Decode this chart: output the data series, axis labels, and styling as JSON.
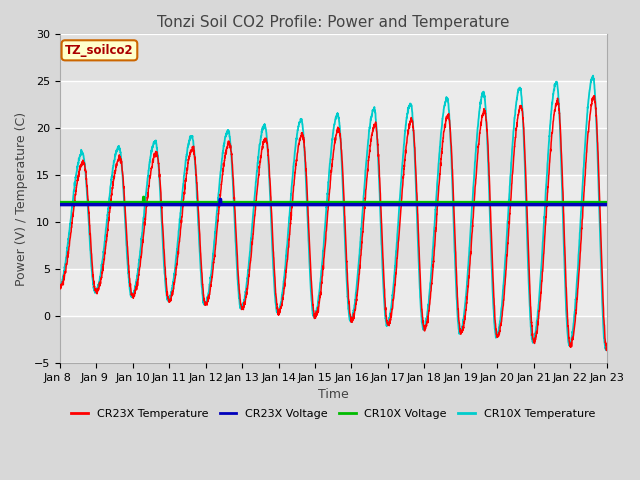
{
  "title": "Tonzi Soil CO2 Profile: Power and Temperature",
  "xlabel": "Time",
  "ylabel": "Power (V) / Temperature (C)",
  "ylim": [
    -5,
    30
  ],
  "xtick_labels": [
    "Jan 8 ",
    "Jan 9 ",
    "Jan 10",
    "Jan 11",
    "Jan 12",
    "Jan 13",
    "Jan 14",
    "Jan 15",
    "Jan 16",
    "Jan 17",
    "Jan 18",
    "Jan 19",
    "Jan 20",
    "Jan 21",
    "Jan 22",
    "Jan 23"
  ],
  "cr23x_voltage_value": 11.85,
  "cr10x_voltage_value": 12.1,
  "plot_bg_color": "#ebebeb",
  "fig_bg_color": "#d8d8d8",
  "annotation_text": "TZ_soilco2",
  "annotation_color": "#aa0000",
  "annotation_bg": "#ffffcc",
  "annotation_border": "#cc6600",
  "cr23x_temp_color": "#ff0000",
  "cr23x_volt_color": "#0000bb",
  "cr10x_volt_color": "#00bb00",
  "cr10x_temp_color": "#00cccc",
  "legend_labels": [
    "CR23X Temperature",
    "CR23X Voltage",
    "CR10X Voltage",
    "CR10X Temperature"
  ],
  "title_fontsize": 11,
  "label_fontsize": 9,
  "tick_fontsize": 8,
  "total_days": 15,
  "points_per_day": 200,
  "grid_color": "#ffffff",
  "band1_color": "#e8e8e8",
  "band2_color": "#f5f5f5"
}
